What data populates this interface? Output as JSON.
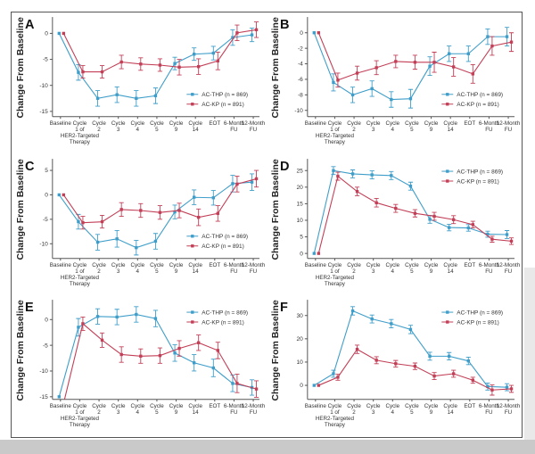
{
  "page": {
    "background": "#ffffff",
    "figure_border_color": "#555555",
    "shadow_color": "#c9c9c9"
  },
  "axis": {
    "ylabel": "Change From Baseline",
    "categories": [
      "Baseline",
      "Cycle 1 of HER2-Targeted Therapy",
      "Cycle 2",
      "Cycle 3",
      "Cycle 4",
      "Cycle 5",
      "Cycle 9",
      "Cycle 14",
      "EOT",
      "6-Month FU",
      "12-Month FU"
    ],
    "tick_lines": [
      [
        "Baseline"
      ],
      [
        "Cycle",
        "1 of",
        "HER2-Targeted",
        "Therapy"
      ],
      [
        "Cycle",
        "2"
      ],
      [
        "Cycle",
        "3"
      ],
      [
        "Cycle",
        "4"
      ],
      [
        "Cycle",
        "5"
      ],
      [
        "Cycle",
        "9"
      ],
      [
        "Cycle",
        "14"
      ],
      [
        "EOT"
      ],
      [
        "6-Month",
        "FU"
      ],
      [
        "12-Month",
        "FU"
      ]
    ]
  },
  "legend": {
    "entries": [
      {
        "label": "AC-THP (n = 869)",
        "color": "#3f9ec9"
      },
      {
        "label": "AC-KP (n = 891)",
        "color": "#c23f57"
      }
    ]
  },
  "chart_data": [
    {
      "panel": "A",
      "type": "line",
      "legend_pos": "br",
      "ylabel": "Change From Baseline",
      "ylim": [
        -16,
        2.8
      ],
      "yticks": [
        0,
        -5,
        -10,
        -15
      ],
      "series": [
        {
          "name": "AC-THP (n = 869)",
          "color": "#3f9ec9",
          "values": [
            0,
            -7.5,
            -12.5,
            -11.8,
            -12.5,
            -12.0,
            -5.8,
            -4.0,
            -3.8,
            -0.8,
            -0.3
          ],
          "err": [
            0,
            1.5,
            1.5,
            1.5,
            1.5,
            1.5,
            1.2,
            1.2,
            1.3,
            1.5,
            1.3
          ]
        },
        {
          "name": "AC-KP (n = 891)",
          "color": "#c23f57",
          "values": [
            0,
            -7.4,
            -7.4,
            -5.5,
            -5.9,
            -6.1,
            -6.5,
            -6.4,
            -5.3,
            0.1,
            0.7
          ],
          "err": [
            0,
            1.2,
            1.2,
            1.3,
            1.2,
            1.2,
            1.5,
            1.5,
            1.7,
            1.5,
            1.5
          ]
        }
      ]
    },
    {
      "panel": "B",
      "type": "line",
      "legend_pos": "br",
      "ylabel": "Change From Baseline",
      "ylim": [
        -10.8,
        1.8
      ],
      "yticks": [
        0,
        -2,
        -4,
        -6,
        -8,
        -10
      ],
      "series": [
        {
          "name": "AC-THP (n = 869)",
          "color": "#3f9ec9",
          "values": [
            0,
            -6.4,
            -8.0,
            -7.2,
            -8.6,
            -8.5,
            -4.3,
            -2.7,
            -2.7,
            -0.5,
            -0.5
          ],
          "err": [
            0,
            1.1,
            1.0,
            1.0,
            1.0,
            1.2,
            1.2,
            1.0,
            1.0,
            1.0,
            1.2
          ]
        },
        {
          "name": "AC-KP (n = 891)",
          "color": "#c23f57",
          "values": [
            0,
            -6.1,
            -5.2,
            -4.5,
            -3.7,
            -3.8,
            -3.8,
            -4.4,
            -5.3,
            -1.7,
            -1.2
          ],
          "err": [
            0,
            0.9,
            0.9,
            0.9,
            0.8,
            0.9,
            1.3,
            1.2,
            1.2,
            1.2,
            1.2
          ]
        }
      ]
    },
    {
      "panel": "C",
      "type": "line",
      "legend_pos": "br",
      "ylabel": "Change From Baseline",
      "ylim": [
        -13,
        7
      ],
      "yticks": [
        5,
        0,
        -5,
        -10
      ],
      "series": [
        {
          "name": "AC-THP (n = 869)",
          "color": "#3f9ec9",
          "values": [
            0,
            -5.5,
            -9.7,
            -9.0,
            -10.8,
            -9.5,
            -3.5,
            -0.5,
            -0.6,
            2.3,
            2.6
          ],
          "err": [
            0,
            1.5,
            1.6,
            1.7,
            1.5,
            1.6,
            1.4,
            1.5,
            1.5,
            1.7,
            1.7
          ]
        },
        {
          "name": "AC-KP (n = 891)",
          "color": "#c23f57",
          "values": [
            0,
            -5.7,
            -5.5,
            -3.0,
            -3.2,
            -3.6,
            -3.2,
            -4.6,
            -3.8,
            2.2,
            3.3
          ],
          "err": [
            0,
            1.3,
            1.3,
            1.4,
            1.4,
            1.4,
            1.5,
            1.7,
            1.6,
            1.6,
            1.7
          ]
        }
      ]
    },
    {
      "panel": "D",
      "type": "line",
      "legend_pos": "tr",
      "ylabel": "Change From Baseline",
      "ylim": [
        -1.5,
        28
      ],
      "yticks": [
        25,
        20,
        15,
        10,
        5,
        0
      ],
      "series": [
        {
          "name": "AC-THP (n = 869)",
          "color": "#3f9ec9",
          "values": [
            0,
            25.0,
            24.0,
            23.7,
            23.5,
            20.3,
            10.3,
            7.8,
            7.7,
            5.8,
            5.7
          ],
          "err": [
            0,
            1.2,
            1.2,
            1.2,
            1.2,
            1.2,
            1.2,
            1.0,
            1.0,
            0.9,
            1.2
          ]
        },
        {
          "name": "AC-KP (n = 891)",
          "color": "#c23f57",
          "values": [
            0,
            23.3,
            18.7,
            15.3,
            13.6,
            12.1,
            11.2,
            10.2,
            8.7,
            4.3,
            3.7
          ],
          "err": [
            0,
            1.2,
            1.3,
            1.3,
            1.2,
            1.1,
            1.2,
            1.2,
            1.0,
            0.9,
            1.0
          ]
        }
      ]
    },
    {
      "panel": "E",
      "type": "line",
      "legend_pos": "tr",
      "ylabel": "Change From Baseline",
      "ylim": [
        -15.5,
        3.5
      ],
      "yticks": [
        0,
        -5,
        -10,
        -15
      ],
      "series": [
        {
          "name": "AC-THP (n = 869)",
          "color": "#3f9ec9",
          "values": [
            -15.0,
            -1.5,
            0.6,
            0.5,
            1.0,
            0.2,
            -6.5,
            -8.4,
            -9.4,
            -12.4,
            -13.2
          ],
          "err": [
            0,
            1.7,
            1.5,
            1.5,
            1.5,
            1.6,
            1.6,
            1.6,
            1.7,
            1.6,
            1.5
          ]
        },
        {
          "name": "AC-KP (n = 891)",
          "color": "#c23f57",
          "values": [
            -16.3,
            -0.8,
            -4.0,
            -6.8,
            -7.1,
            -7.0,
            -5.6,
            -4.5,
            -6.0,
            -12.4,
            -13.5
          ],
          "err": [
            0,
            1.3,
            1.4,
            1.5,
            1.4,
            1.5,
            1.5,
            1.5,
            1.6,
            1.8,
            1.6
          ]
        }
      ]
    },
    {
      "panel": "F",
      "type": "line",
      "legend_pos": "tr",
      "ylabel": "Change From Baseline",
      "ylim": [
        -6,
        36
      ],
      "yticks": [
        30,
        20,
        10,
        0
      ],
      "series": [
        {
          "name": "AC-THP (n = 869)",
          "color": "#3f9ec9",
          "values": [
            0,
            5.0,
            32.0,
            28.5,
            26.5,
            24.0,
            12.5,
            12.5,
            10.5,
            -0.5,
            -0.8
          ],
          "err": [
            0,
            1.5,
            1.8,
            1.7,
            1.8,
            1.8,
            1.7,
            1.6,
            1.6,
            1.5,
            1.5
          ]
        },
        {
          "name": "AC-KP (n = 891)",
          "color": "#c23f57",
          "values": [
            0,
            3.5,
            15.5,
            10.8,
            9.3,
            8.2,
            4.0,
            5.0,
            2.2,
            -2.0,
            -1.5
          ],
          "err": [
            0,
            1.3,
            1.8,
            1.5,
            1.4,
            1.4,
            1.5,
            1.5,
            1.3,
            2.2,
            1.5
          ]
        }
      ]
    }
  ]
}
